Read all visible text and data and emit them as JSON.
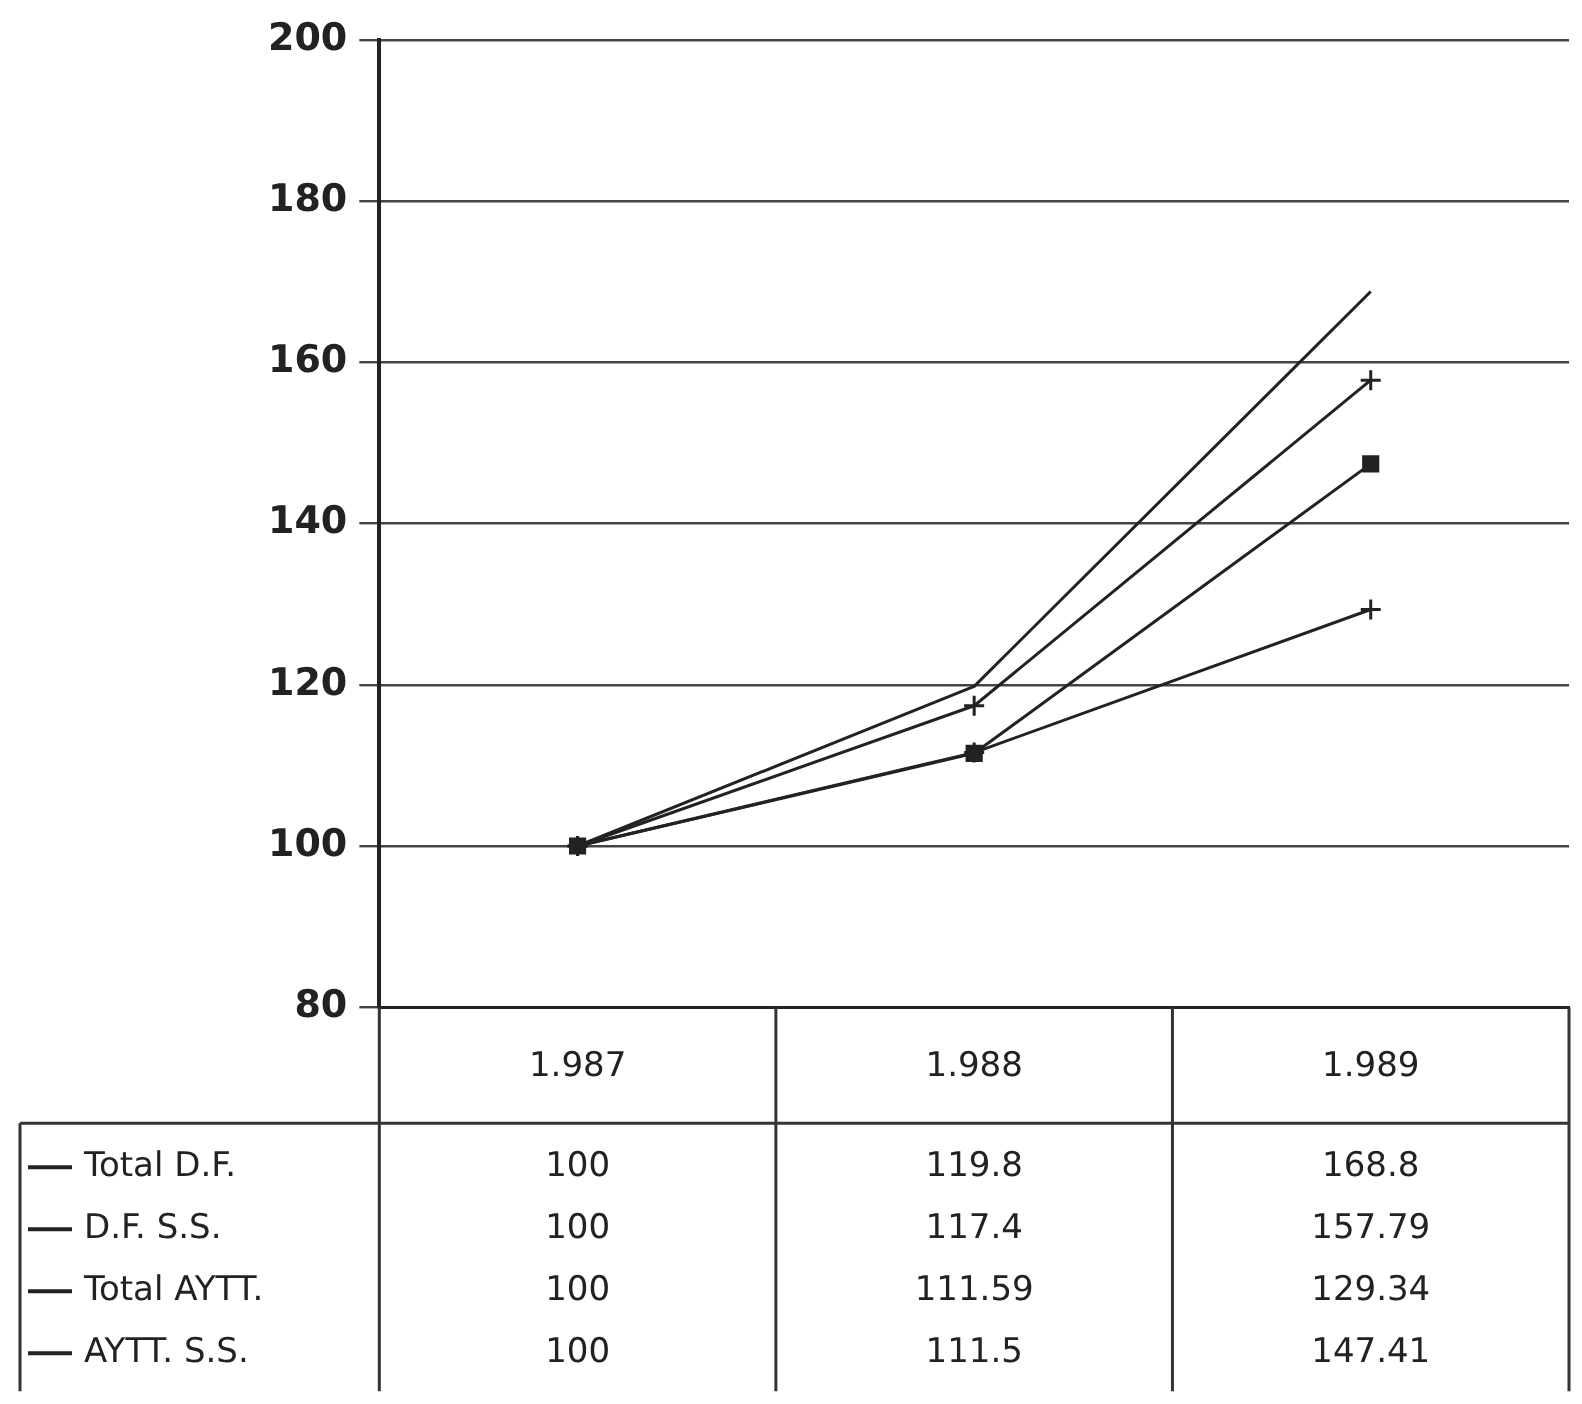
{
  "chart_data": {
    "type": "line",
    "categories": [
      "1.987",
      "1.988",
      "1.989"
    ],
    "series": [
      {
        "name": "Total D.F.",
        "color": "#222222",
        "marker": "none",
        "values": [
          100,
          119.8,
          168.8
        ]
      },
      {
        "name": "D.F. S.S.",
        "color": "#222222",
        "marker": "cross",
        "values": [
          100,
          117.4,
          157.79
        ]
      },
      {
        "name": "Total AYTT.",
        "color": "#222222",
        "marker": "cross",
        "values": [
          100,
          111.59,
          129.34
        ]
      },
      {
        "name": "AYTT. S.S.",
        "color": "#222222",
        "marker": "square",
        "values": [
          100,
          111.5,
          147.41
        ]
      }
    ],
    "ylim": [
      80,
      200
    ],
    "yticks": [
      80,
      100,
      120,
      140,
      160,
      180,
      200
    ],
    "grid": "y",
    "legend": "bottom left",
    "data_labels": true,
    "line_style": "solid"
  }
}
